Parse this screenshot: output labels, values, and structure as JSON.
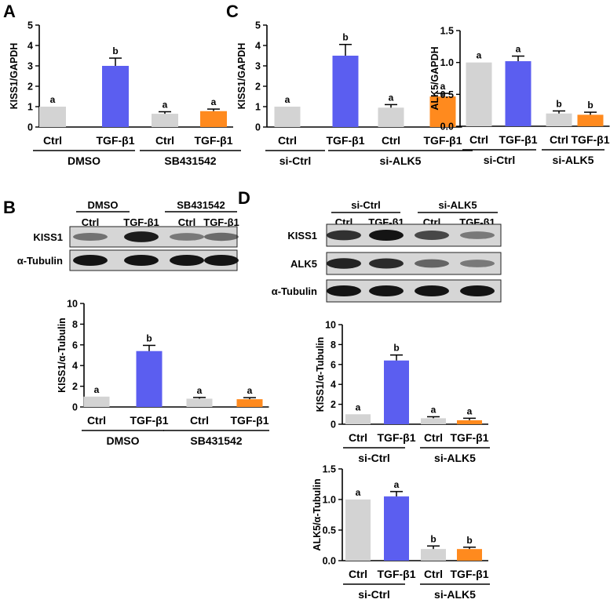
{
  "panel_letters": {
    "A": "A",
    "B": "B",
    "C": "C",
    "D": "D"
  },
  "colors": {
    "ctrl": "#d3d3d3",
    "tgf": "#5b5ef0",
    "inhib_tgf": "#ff8a1e",
    "axis": "#000000",
    "blot_bg": "#d6d6d6",
    "band": "#141414"
  },
  "blots": {
    "B": {
      "groups": [
        "DMSO",
        "SB431542"
      ],
      "lanes": [
        "Ctrl",
        "TGF-β1",
        "Ctrl",
        "TGF-β1"
      ],
      "rows": [
        {
          "label": "KISS1",
          "intensity": [
            0.35,
            0.95,
            0.3,
            0.4
          ]
        },
        {
          "label": "α-Tubulin",
          "intensity": [
            1.0,
            1.0,
            1.0,
            1.0
          ]
        }
      ]
    },
    "D": {
      "groups": [
        "si-Ctrl",
        "si-ALK5"
      ],
      "lanes": [
        "Ctrl",
        "TGF-β1",
        "Ctrl",
        "TGF-β1"
      ],
      "rows": [
        {
          "label": "KISS1",
          "intensity": [
            0.8,
            1.0,
            0.65,
            0.3
          ]
        },
        {
          "label": "ALK5",
          "intensity": [
            0.9,
            0.85,
            0.45,
            0.3
          ]
        },
        {
          "label": "α-Tubulin",
          "intensity": [
            1.0,
            1.0,
            1.0,
            1.0
          ]
        }
      ]
    }
  },
  "chart_data": [
    {
      "id": "A",
      "type": "bar",
      "ylabel": "KISS1/GAPDH",
      "categories": [
        "Ctrl",
        "TGF-β1",
        "Ctrl",
        "TGF-β1"
      ],
      "groups": [
        "DMSO",
        "SB431542"
      ],
      "values": [
        1.0,
        3.0,
        0.65,
        0.78
      ],
      "errors": [
        0,
        0.38,
        0.1,
        0.1
      ],
      "significance": [
        "a",
        "b",
        "a",
        "a"
      ],
      "ylim": [
        0,
        5
      ],
      "yticks": [
        0,
        1,
        2,
        3,
        4,
        5
      ],
      "ytick_labels": [
        "0",
        "1",
        "2",
        "3",
        "4",
        "5"
      ]
    },
    {
      "id": "B",
      "type": "bar",
      "ylabel": "KISS1/α-Tubulin",
      "categories": [
        "Ctrl",
        "TGF-β1",
        "Ctrl",
        "TGF-β1"
      ],
      "groups": [
        "DMSO",
        "SB431542"
      ],
      "values": [
        1.0,
        5.4,
        0.8,
        0.75
      ],
      "errors": [
        0,
        0.55,
        0.12,
        0.15
      ],
      "significance": [
        "a",
        "b",
        "a",
        "a"
      ],
      "ylim": [
        0,
        10
      ],
      "yticks": [
        0,
        2,
        4,
        6,
        8,
        10
      ],
      "ytick_labels": [
        "0",
        "2",
        "4",
        "6",
        "8",
        "10"
      ]
    },
    {
      "id": "C1",
      "type": "bar",
      "ylabel": "KISS1/GAPDH",
      "categories": [
        "Ctrl",
        "TGF-β1",
        "Ctrl",
        "TGF-β1"
      ],
      "groups": [
        "si-Ctrl",
        "si-ALK5"
      ],
      "values": [
        1.0,
        3.5,
        0.95,
        1.5
      ],
      "errors": [
        0,
        0.55,
        0.15,
        0.15
      ],
      "significance": [
        "a",
        "b",
        "a",
        "a"
      ],
      "ylim": [
        0,
        5
      ],
      "yticks": [
        0,
        1,
        2,
        3,
        4,
        5
      ],
      "ytick_labels": [
        "0",
        "1",
        "2",
        "3",
        "4",
        "5"
      ]
    },
    {
      "id": "C2",
      "type": "bar",
      "ylabel": "ALK5/GAPDH",
      "categories": [
        "Ctrl",
        "TGF-β1",
        "Ctrl",
        "TGF-β1"
      ],
      "groups": [
        "si-Ctrl",
        "si-ALK5"
      ],
      "values": [
        1.0,
        1.02,
        0.2,
        0.18
      ],
      "errors": [
        0,
        0.08,
        0.04,
        0.04
      ],
      "significance": [
        "a",
        "a",
        "b",
        "b"
      ],
      "ylim": [
        0,
        1.5
      ],
      "yticks": [
        0,
        0.5,
        1.0,
        1.5
      ],
      "ytick_labels": [
        "0.0",
        "0.5",
        "1.0",
        "1.5"
      ]
    },
    {
      "id": "D1",
      "type": "bar",
      "ylabel": "KISS1/α-Tubulin",
      "categories": [
        "Ctrl",
        "TGF-β1",
        "Ctrl",
        "TGF-β1"
      ],
      "groups": [
        "si-Ctrl",
        "si-ALK5"
      ],
      "values": [
        1.0,
        6.4,
        0.6,
        0.4
      ],
      "errors": [
        0,
        0.55,
        0.15,
        0.2
      ],
      "significance": [
        "a",
        "b",
        "a",
        "a"
      ],
      "ylim": [
        0,
        10
      ],
      "yticks": [
        0,
        2,
        4,
        6,
        8,
        10
      ],
      "ytick_labels": [
        "0",
        "2",
        "4",
        "6",
        "8",
        "10"
      ]
    },
    {
      "id": "D2",
      "type": "bar",
      "ylabel": "ALK5/α-Tubulin",
      "categories": [
        "Ctrl",
        "TGF-β1",
        "Ctrl",
        "TGF-β1"
      ],
      "groups": [
        "si-Ctrl",
        "si-ALK5"
      ],
      "values": [
        1.0,
        1.05,
        0.19,
        0.19
      ],
      "errors": [
        0,
        0.08,
        0.05,
        0.03
      ],
      "significance": [
        "a",
        "a",
        "b",
        "b"
      ],
      "ylim": [
        0,
        1.5
      ],
      "yticks": [
        0,
        0.5,
        1.0,
        1.5
      ],
      "ytick_labels": [
        "0.0",
        "0.5",
        "1.0",
        "1.5"
      ]
    }
  ]
}
